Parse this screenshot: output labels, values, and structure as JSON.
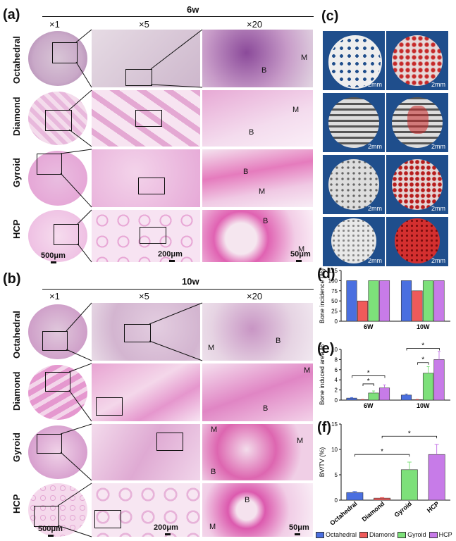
{
  "panels": {
    "a": {
      "label": "(a)",
      "time": "6w"
    },
    "b": {
      "label": "(b)",
      "time": "10w"
    },
    "c": {
      "label": "(c)"
    },
    "d": {
      "label": "(d)"
    },
    "e": {
      "label": "(e)"
    },
    "f": {
      "label": "(f)"
    }
  },
  "magnifications": [
    "×1",
    "×5",
    "×20"
  ],
  "rows": [
    "Octahedral",
    "Diamond",
    "Gyroid",
    "HCP"
  ],
  "scale_bars": {
    "x1": "500μm",
    "x5": "200μm",
    "x20": "50μm"
  },
  "tissue_tags": {
    "bone": "B",
    "marrow": "M"
  },
  "ct_scale": "2mm",
  "legend": {
    "items": [
      {
        "name": "Octahedral",
        "color": "#4a6fe0"
      },
      {
        "name": "Diamond",
        "color": "#ef5a5a"
      },
      {
        "name": "Gyroid",
        "color": "#7de07a"
      },
      {
        "name": "HCP",
        "color": "#c77be8"
      }
    ]
  },
  "chart_data": [
    {
      "id": "d",
      "type": "bar",
      "ylabel": "Bone incidence (%)",
      "categories": [
        "6W",
        "10W"
      ],
      "ylim": [
        0,
        125
      ],
      "yticks": [
        0,
        25,
        50,
        75,
        100,
        125
      ],
      "series": [
        {
          "name": "Octahedral",
          "values": [
            100,
            100
          ]
        },
        {
          "name": "Diamond",
          "values": [
            50,
            75
          ]
        },
        {
          "name": "Gyroid",
          "values": [
            100,
            100
          ]
        },
        {
          "name": "HCP",
          "values": [
            100,
            100
          ]
        }
      ]
    },
    {
      "id": "e",
      "type": "bar",
      "ylabel": "Bone induced area %",
      "categories": [
        "6W",
        "10W"
      ],
      "ylim": [
        0,
        10
      ],
      "yticks": [
        0,
        2,
        4,
        6,
        8,
        10
      ],
      "series": [
        {
          "name": "Octahedral",
          "values": [
            0.4,
            1.0
          ],
          "err": [
            0.1,
            0.2
          ]
        },
        {
          "name": "Diamond",
          "values": [
            0.1,
            0.1
          ],
          "err": [
            0.05,
            0.05
          ]
        },
        {
          "name": "Gyroid",
          "values": [
            1.4,
            5.3
          ],
          "err": [
            0.4,
            1.3
          ]
        },
        {
          "name": "HCP",
          "values": [
            2.4,
            8.0
          ],
          "err": [
            0.6,
            1.6
          ]
        }
      ],
      "annotations": "*"
    },
    {
      "id": "f",
      "type": "bar",
      "ylabel": "BV/TV (%)",
      "categories": [
        "Octahedral",
        "Diamond",
        "Gyroid",
        "HCP"
      ],
      "ylim": [
        0,
        15
      ],
      "yticks": [
        0,
        5,
        10,
        15
      ],
      "values": [
        1.5,
        0.4,
        6.0,
        9.0
      ],
      "err": [
        0.2,
        0.1,
        1.5,
        2.0
      ],
      "annotations": "*"
    }
  ]
}
